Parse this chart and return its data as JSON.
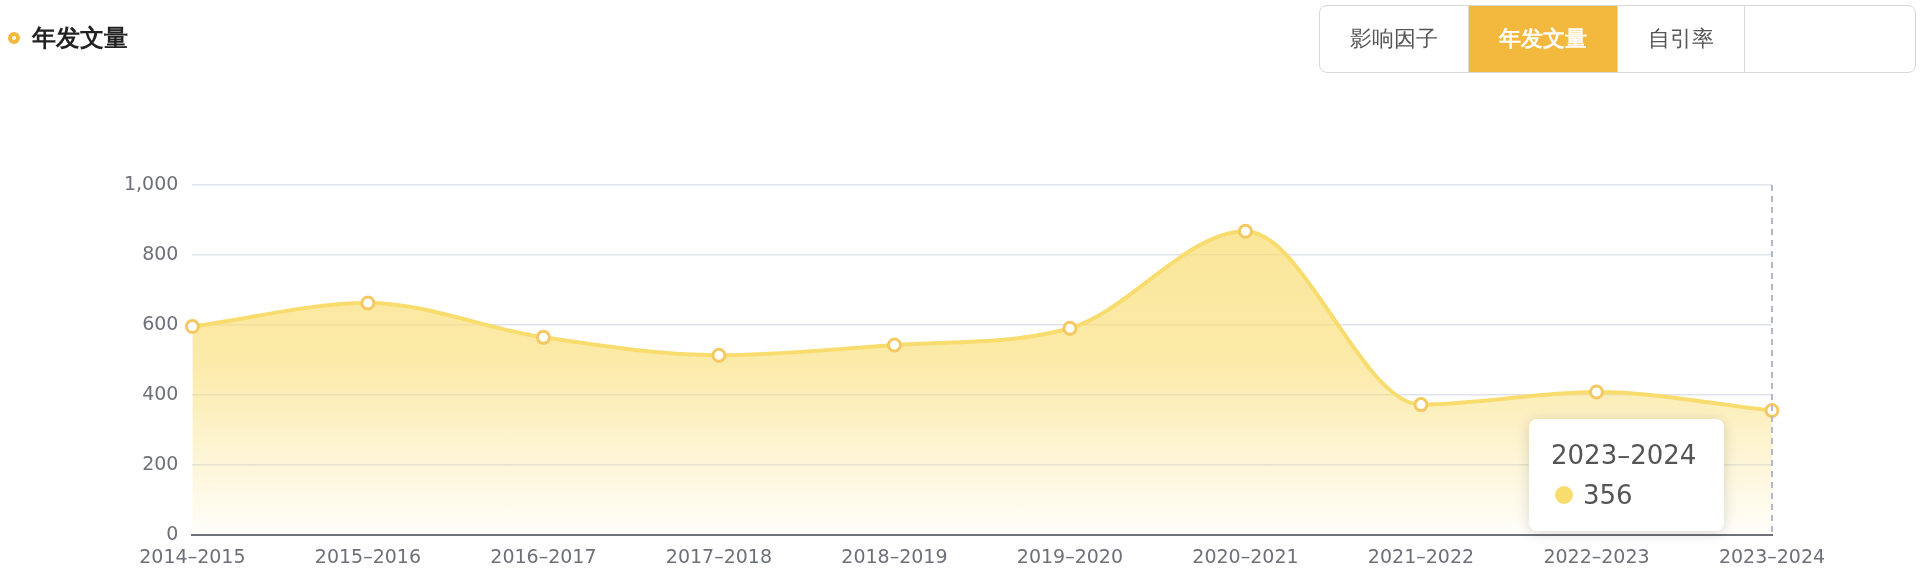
{
  "chart_data": {
    "type": "area",
    "title": "年发文量",
    "categories": [
      "2014–2015",
      "2015–2016",
      "2016–2017",
      "2017–2018",
      "2018–2019",
      "2019–2020",
      "2020–2021",
      "2021–2022",
      "2022–2023",
      "2023–2024"
    ],
    "series": [
      {
        "color": "#f9dc6e",
        "values": [
          596,
          663,
          565,
          514,
          543,
          591,
          868,
          373,
          409,
          356
        ]
      }
    ],
    "ylim": [
      0,
      1000
    ],
    "yticks": [
      0,
      200,
      400,
      600,
      800,
      {
        "value": 1000,
        "label": "1,000"
      }
    ],
    "grid": "y",
    "legend": false,
    "marker": "circle",
    "line_style": "solid",
    "ref_lines": [
      {
        "axis": "x",
        "value": "2023–2024",
        "line_style": "dashed",
        "color": "#b4b8cc"
      }
    ],
    "annotations": [
      "影响因子",
      "年发文量",
      "自引率",
      "2023–2024",
      "356"
    ]
  }
}
